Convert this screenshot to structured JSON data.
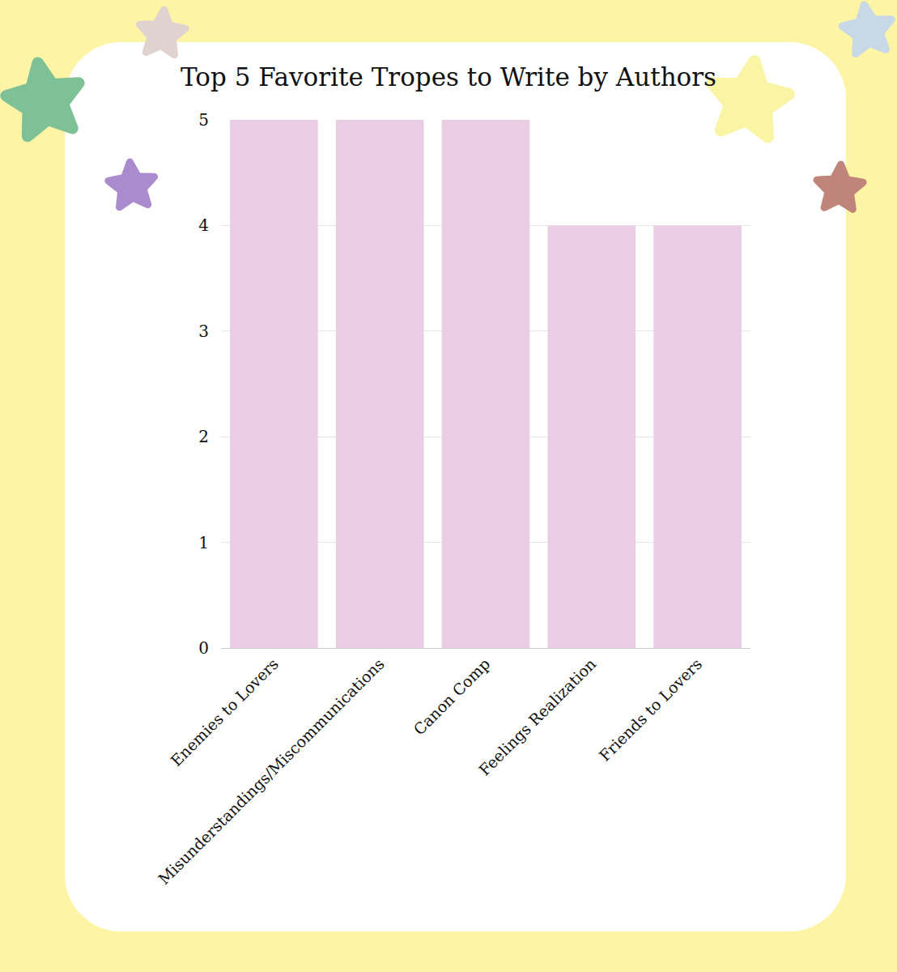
{
  "chart_data": {
    "type": "bar",
    "title": "Top 5 Favorite Tropes to Write by Authors",
    "categories": [
      "Enemies to Lovers",
      "Misunderstandings/Miscommunications",
      "Canon Comp",
      "Feelings Realization",
      "Friends to Lovers"
    ],
    "values": [
      5,
      5,
      5,
      4,
      4
    ],
    "color": "#ebcde3",
    "ylim": [
      0,
      5
    ],
    "yticks": [
      0,
      1,
      2,
      3,
      4,
      5
    ],
    "grid": true
  }
}
